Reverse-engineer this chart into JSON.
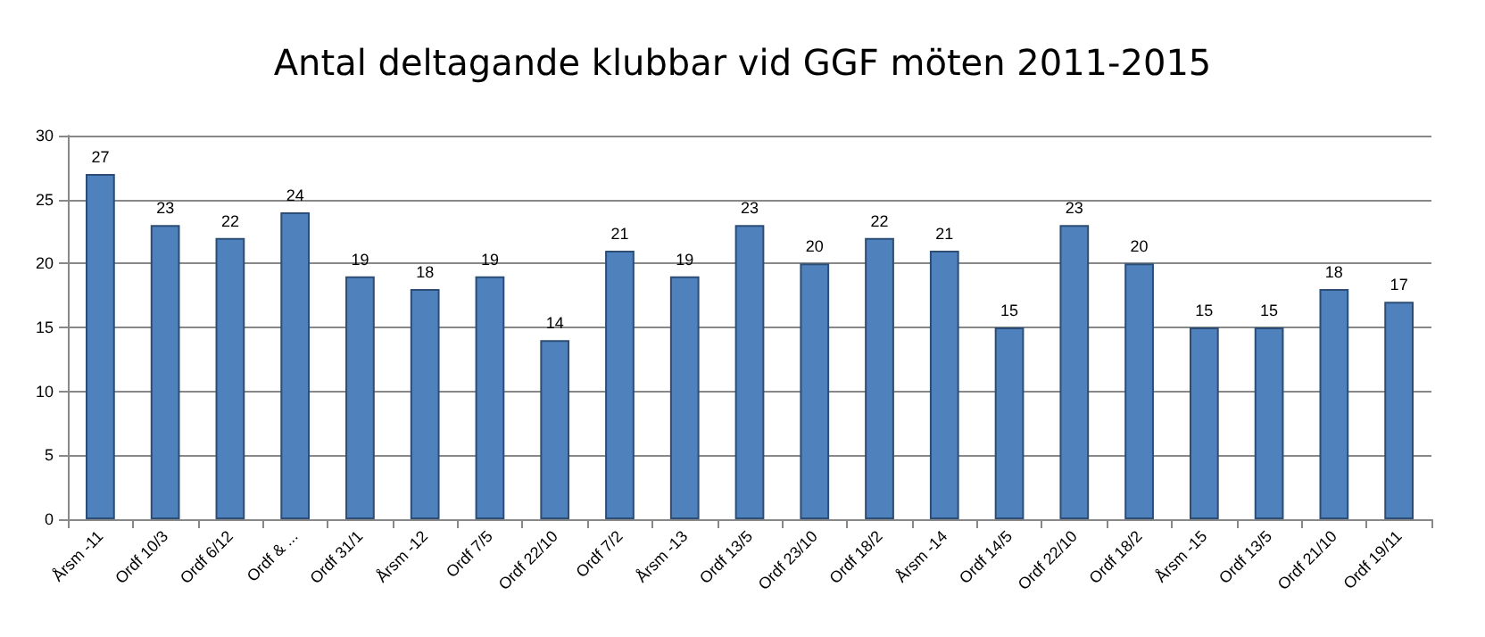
{
  "chart_data": {
    "type": "bar",
    "title": "Antal deltagande klubbar vid GGF möten 2011-2015",
    "categories": [
      "Årsm -11",
      "Ordf 10/3",
      "Ordf 6/12",
      "Ordf & ...",
      "Ordf 31/1",
      "Årsm -12",
      "Ordf 7/5",
      "Ordf 22/10",
      "Ordf 7/2",
      "Årsm -13",
      "Ordf 13/5",
      "Ordf 23/10",
      "Ordf 18/2",
      "Årsm -14",
      "Ordf 14/5",
      "Ordf 22/10",
      "Ordf 18/2",
      "Årsm -15",
      "Ordf 13/5",
      "Ordf 21/10",
      "Ordf 19/11"
    ],
    "values": [
      27,
      23,
      22,
      24,
      19,
      18,
      19,
      14,
      21,
      19,
      23,
      20,
      22,
      21,
      15,
      23,
      20,
      15,
      15,
      18,
      17
    ],
    "color": "#4f81bd",
    "ylim": [
      0,
      30
    ],
    "yticks": [
      0,
      5,
      10,
      15,
      20,
      25,
      30
    ],
    "grid": "y",
    "data_labels": true
  }
}
